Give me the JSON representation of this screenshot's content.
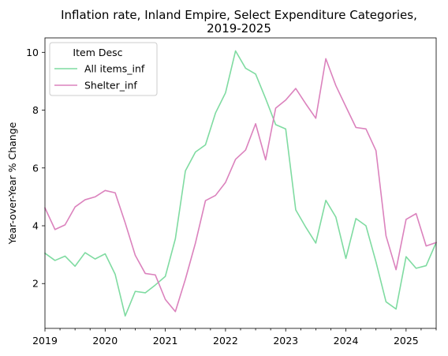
{
  "chart_data": {
    "type": "line",
    "title_line1": "Inflation rate, Inland Empire, Select Expenditure Categories,",
    "title_line2": "2019-2025",
    "xlabel": "",
    "ylabel": "Year-over-Year % Change",
    "xlim": [
      "2019-01",
      "2025-07"
    ],
    "ylim": [
      0.45,
      10.5
    ],
    "grid": false,
    "x_ticks": [
      "2019",
      "2020",
      "2021",
      "2022",
      "2023",
      "2024",
      "2025"
    ],
    "y_ticks": [
      "2",
      "4",
      "6",
      "8",
      "10"
    ],
    "legend": {
      "title": "Item Desc",
      "placement": "top-left"
    },
    "x": [
      "2019-01",
      "2019-03",
      "2019-05",
      "2019-07",
      "2019-09",
      "2019-11",
      "2020-01",
      "2020-03",
      "2020-05",
      "2020-07",
      "2020-09",
      "2020-11",
      "2021-01",
      "2021-03",
      "2021-05",
      "2021-07",
      "2021-09",
      "2021-11",
      "2022-01",
      "2022-03",
      "2022-05",
      "2022-07",
      "2022-09",
      "2022-11",
      "2023-01",
      "2023-03",
      "2023-05",
      "2023-07",
      "2023-09",
      "2023-11",
      "2024-01",
      "2024-03",
      "2024-05",
      "2024-07",
      "2024-09",
      "2024-11",
      "2025-01",
      "2025-03",
      "2025-05",
      "2025-07"
    ],
    "series": [
      {
        "name": "All items_inf",
        "color": "#7fdba1",
        "values": [
          3.05,
          2.8,
          2.95,
          2.6,
          3.07,
          2.85,
          3.03,
          2.32,
          0.88,
          1.73,
          1.68,
          1.95,
          2.25,
          3.55,
          5.9,
          6.55,
          6.8,
          7.9,
          8.6,
          10.05,
          9.45,
          9.25,
          8.4,
          7.5,
          7.35,
          4.55,
          3.95,
          3.4,
          4.88,
          4.3,
          2.87,
          4.25,
          4.0,
          2.75,
          1.37,
          1.12,
          2.93,
          2.53,
          2.62,
          3.42
        ]
      },
      {
        "name": "Shelter_inf",
        "color": "#db82bd",
        "values": [
          4.62,
          3.87,
          4.03,
          4.65,
          4.9,
          5.0,
          5.22,
          5.14,
          4.1,
          2.98,
          2.35,
          2.3,
          1.45,
          1.03,
          2.15,
          3.4,
          4.87,
          5.05,
          5.5,
          6.3,
          6.62,
          7.53,
          6.28,
          8.07,
          8.35,
          8.75,
          8.22,
          7.72,
          9.78,
          8.85,
          8.12,
          7.4,
          7.35,
          6.6,
          3.65,
          2.48,
          4.22,
          4.42,
          3.3,
          3.42
        ]
      }
    ]
  }
}
